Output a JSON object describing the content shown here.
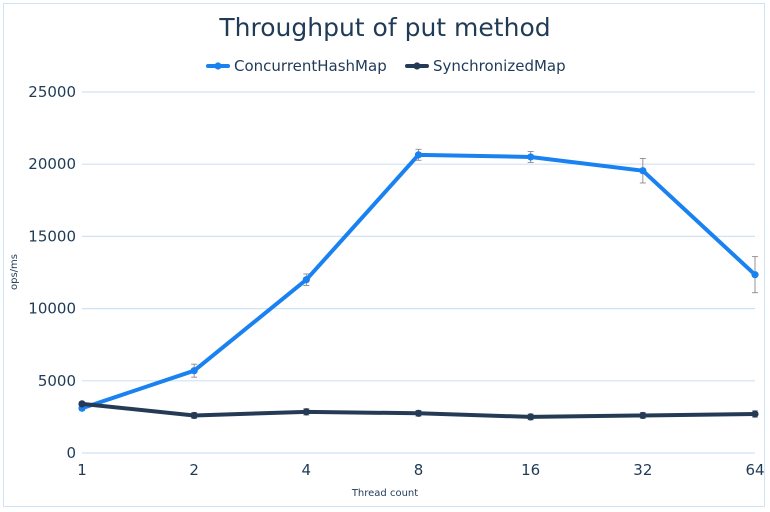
{
  "chart_data": {
    "type": "line",
    "title": "Throughput of put method",
    "xlabel": "Thread count",
    "ylabel": "ops/ms",
    "categories": [
      "1",
      "2",
      "4",
      "8",
      "16",
      "32",
      "64"
    ],
    "ylim": [
      0,
      25000
    ],
    "yticks": [
      "0",
      "5000",
      "10000",
      "15000",
      "20000",
      "25000"
    ],
    "grid": "horizontal",
    "legend": "top-center",
    "series": [
      {
        "name": "ConcurrentHashMap",
        "color": "#1a82f0",
        "values": [
          3100,
          5700,
          12000,
          20650,
          20500,
          19550,
          12350
        ],
        "error": [
          150,
          450,
          400,
          380,
          380,
          850,
          1250
        ]
      },
      {
        "name": "SynchronizedMap",
        "color": "#253b55",
        "values": [
          3400,
          2600,
          2850,
          2750,
          2500,
          2600,
          2700
        ],
        "error": [
          150,
          200,
          220,
          200,
          200,
          200,
          220
        ]
      }
    ]
  }
}
